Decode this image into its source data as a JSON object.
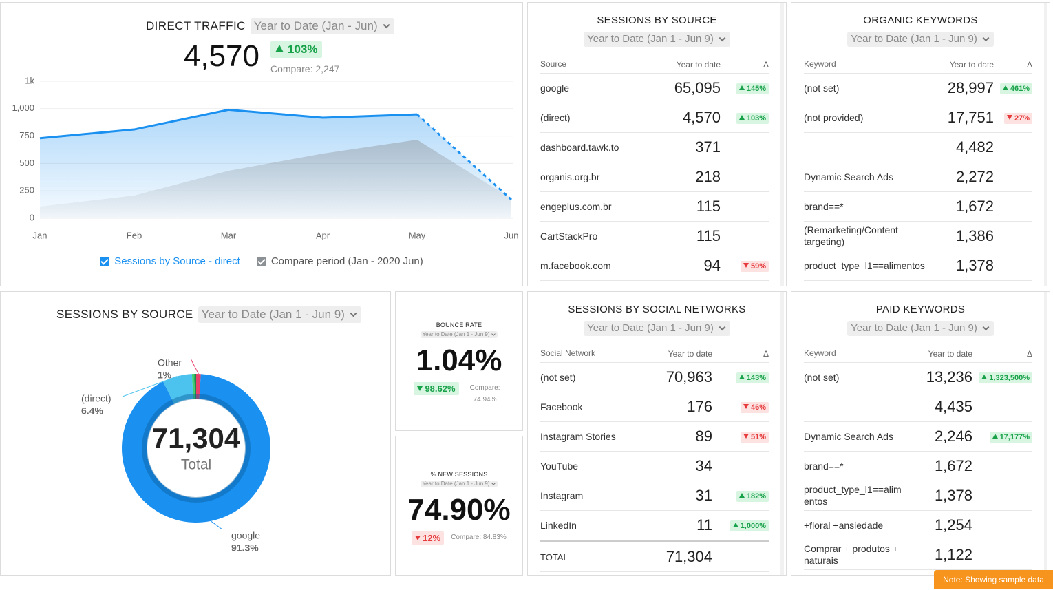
{
  "chart_data": [
    {
      "type": "line",
      "title": "DIRECT TRAFFIC",
      "filter": "Year to Date (Jan - Jun)",
      "kpi": {
        "value": "4,570",
        "change": "103%",
        "trend": "up",
        "compare": "Compare: 2,247"
      },
      "categories": [
        "Jan",
        "Feb",
        "Mar",
        "Apr",
        "May",
        "Jun"
      ],
      "series": [
        {
          "name": "Sessions by Source - direct",
          "color": "#1a90f0",
          "values": [
            730,
            810,
            990,
            917,
            948,
            170
          ],
          "line": true,
          "dashed_last_segment": true
        },
        {
          "name": "Compare period (Jan - 2020 Jun)",
          "color": "#8c9196",
          "values": [
            107,
            207,
            433,
            590,
            716,
            180
          ],
          "line": false
        }
      ],
      "ylim": [
        0,
        1250
      ],
      "yticks": [
        0,
        250,
        500,
        750,
        {
          "value": 1000,
          "label": "1,000"
        },
        {
          "value": 1250,
          "label": "1k"
        }
      ],
      "grid": true,
      "legend": "bottom"
    },
    {
      "type": "pie",
      "title": "SESSIONS BY SOURCE",
      "filter": "Year to Date (Jan 1 - Jun 9)",
      "total": "71,304",
      "total_label": "Total",
      "donut": true,
      "categories": [
        "Other",
        "google",
        "(direct)",
        null,
        null
      ],
      "values": [
        1,
        91.3,
        6.4,
        0.5,
        0.4
      ],
      "value_labels": [
        "1%",
        "91.3%",
        "6.4%",
        null,
        null
      ],
      "colors": [
        "#e8416b",
        "#1a90f0",
        "#4cc3ee",
        "#3ecf6e",
        "#1c8a4a"
      ]
    }
  ],
  "kpis": [
    {
      "title": "BOUNCE RATE",
      "filter": "Year to Date (Jan 1 - Jun 9)",
      "value": "1.04%",
      "change": "98.62%",
      "trend": "down",
      "sentiment": "positive",
      "compare": "Compare: 74.94%"
    },
    {
      "title": "% NEW SESSIONS",
      "filter": "Year to Date (Jan 1 - Jun 9)",
      "value": "74.90%",
      "change": "12%",
      "trend": "down",
      "sentiment": "negative",
      "compare": "Compare: 84.83%"
    }
  ],
  "tables": [
    {
      "title": "SESSIONS BY SOURCE",
      "filter": "Year to Date (Jan 1 - Jun 9)",
      "columns": [
        "Source",
        "Year to date",
        "Δ"
      ],
      "rows": [
        {
          "name": "google",
          "value": "65,095",
          "change": "145%",
          "trend": "up"
        },
        {
          "name": "(direct)",
          "value": "4,570",
          "change": "103%",
          "trend": "up"
        },
        {
          "name": "dashboard.tawk.to",
          "value": "371"
        },
        {
          "name": "organis.org.br",
          "value": "218"
        },
        {
          "name": "engeplus.com.br",
          "value": "115"
        },
        {
          "name": "CartStackPro",
          "value": "115"
        },
        {
          "name": "m.facebook.com",
          "value": "94",
          "change": "59%",
          "trend": "down"
        }
      ]
    },
    {
      "title": "ORGANIC KEYWORDS",
      "filter": "Year to Date (Jan 1 - Jun 9)",
      "columns": [
        "Keyword",
        "Year to date",
        "Δ"
      ],
      "rows": [
        {
          "name": "(not set)",
          "value": "28,997",
          "change": "461%",
          "trend": "up"
        },
        {
          "name": "(not provided)",
          "value": "17,751",
          "change": "27%",
          "trend": "down"
        },
        {
          "value": "4,482"
        },
        {
          "name": "Dynamic Search Ads",
          "value": "2,272"
        },
        {
          "name": "brand==*",
          "value": "1,672"
        },
        {
          "name": "(Remarketing/Content targeting)",
          "value": "1,386"
        },
        {
          "name": "product_type_l1==alimentos",
          "value": "1,378"
        }
      ]
    },
    {
      "title": "SESSIONS BY SOCIAL NETWORKS",
      "filter": "Year to Date (Jan 1 - Jun 9)",
      "columns": [
        "Social Network",
        "Year to date",
        "Δ"
      ],
      "rows": [
        {
          "name": "(not set)",
          "value": "70,963",
          "change": "143%",
          "trend": "up"
        },
        {
          "name": "Facebook",
          "value": "176",
          "change": "46%",
          "trend": "down"
        },
        {
          "name": "Instagram Stories",
          "value": "89",
          "change": "51%",
          "trend": "down"
        },
        {
          "name": "YouTube",
          "value": "34"
        },
        {
          "name": "Instagram",
          "value": "31",
          "change": "182%",
          "trend": "up"
        },
        {
          "name": "LinkedIn",
          "value": "11",
          "change": "1,000%",
          "trend": "up"
        }
      ],
      "total": {
        "name": "TOTAL",
        "value": "71,304"
      }
    },
    {
      "title": "PAID KEYWORDS",
      "filter": "Year to Date (Jan 1 - Jun 9)",
      "columns": [
        "Keyword",
        "Year to date",
        "Δ"
      ],
      "rows": [
        {
          "name": "(not set)",
          "value": "13,236",
          "change": "1,323,500%",
          "trend": "up"
        },
        {
          "value": "4,435"
        },
        {
          "name": "Dynamic Search Ads",
          "value": "2,246",
          "change": "17,177%",
          "trend": "up"
        },
        {
          "name": "brand==*",
          "value": "1,672"
        },
        {
          "name": "product_type_l1==alimentos",
          "value": "1,378"
        },
        {
          "name": "+floral +ansiedade",
          "value": "1,254"
        },
        {
          "name": "Comprar + produtos + naturais",
          "value": "1,122"
        }
      ]
    }
  ],
  "note": "Note: Showing sample data"
}
